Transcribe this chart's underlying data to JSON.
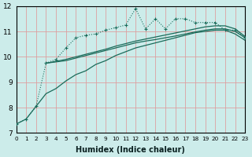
{
  "xlabel": "Humidex (Indice chaleur)",
  "bg_color": "#ccecea",
  "grid_color": "#dda0a0",
  "line_color": "#1a6b5a",
  "xlim": [
    0,
    23
  ],
  "ylim": [
    7,
    12
  ],
  "xticks": [
    0,
    1,
    2,
    3,
    4,
    5,
    6,
    7,
    8,
    9,
    10,
    11,
    12,
    13,
    14,
    15,
    16,
    17,
    18,
    19,
    20,
    21,
    22,
    23
  ],
  "yticks": [
    7,
    8,
    9,
    10,
    11,
    12
  ],
  "line1_x": [
    0,
    1,
    2,
    3,
    4,
    5,
    6,
    7,
    8,
    9,
    10,
    11,
    12,
    13,
    14,
    15,
    16,
    17,
    18,
    19,
    20,
    21,
    22,
    23
  ],
  "line1_y": [
    7.35,
    7.55,
    8.05,
    9.75,
    9.9,
    10.35,
    10.75,
    10.85,
    10.9,
    11.05,
    11.15,
    11.25,
    11.9,
    11.1,
    11.5,
    11.1,
    11.5,
    11.5,
    11.35,
    11.35,
    11.35,
    11.05,
    11.05,
    10.75
  ],
  "line2_x": [
    0,
    1,
    2,
    3,
    4,
    5,
    6,
    7,
    8,
    9,
    10,
    11,
    12,
    13,
    14,
    15,
    16,
    17,
    18,
    19,
    20,
    21,
    22,
    23
  ],
  "line2_y": [
    7.35,
    7.55,
    8.05,
    8.55,
    8.75,
    9.05,
    9.3,
    9.45,
    9.7,
    9.85,
    10.05,
    10.2,
    10.35,
    10.45,
    10.55,
    10.65,
    10.75,
    10.85,
    10.95,
    11.0,
    11.05,
    11.05,
    10.9,
    10.65
  ],
  "line3_x": [
    3,
    4,
    5,
    6,
    7,
    8,
    9,
    10,
    11,
    12,
    13,
    14,
    15,
    16,
    17,
    18,
    19,
    20,
    21,
    22,
    23
  ],
  "line3_y": [
    9.75,
    9.8,
    9.85,
    9.95,
    10.05,
    10.15,
    10.25,
    10.35,
    10.45,
    10.55,
    10.62,
    10.68,
    10.75,
    10.82,
    10.9,
    10.98,
    11.05,
    11.1,
    11.1,
    11.0,
    10.75
  ],
  "line4_x": [
    3,
    4,
    5,
    6,
    7,
    8,
    9,
    10,
    11,
    12,
    13,
    14,
    15,
    16,
    17,
    18,
    19,
    20,
    21,
    22,
    23
  ],
  "line4_y": [
    9.75,
    9.82,
    9.9,
    10.0,
    10.1,
    10.2,
    10.3,
    10.42,
    10.52,
    10.62,
    10.7,
    10.78,
    10.86,
    10.94,
    11.02,
    11.1,
    11.18,
    11.22,
    11.22,
    11.1,
    10.8
  ]
}
